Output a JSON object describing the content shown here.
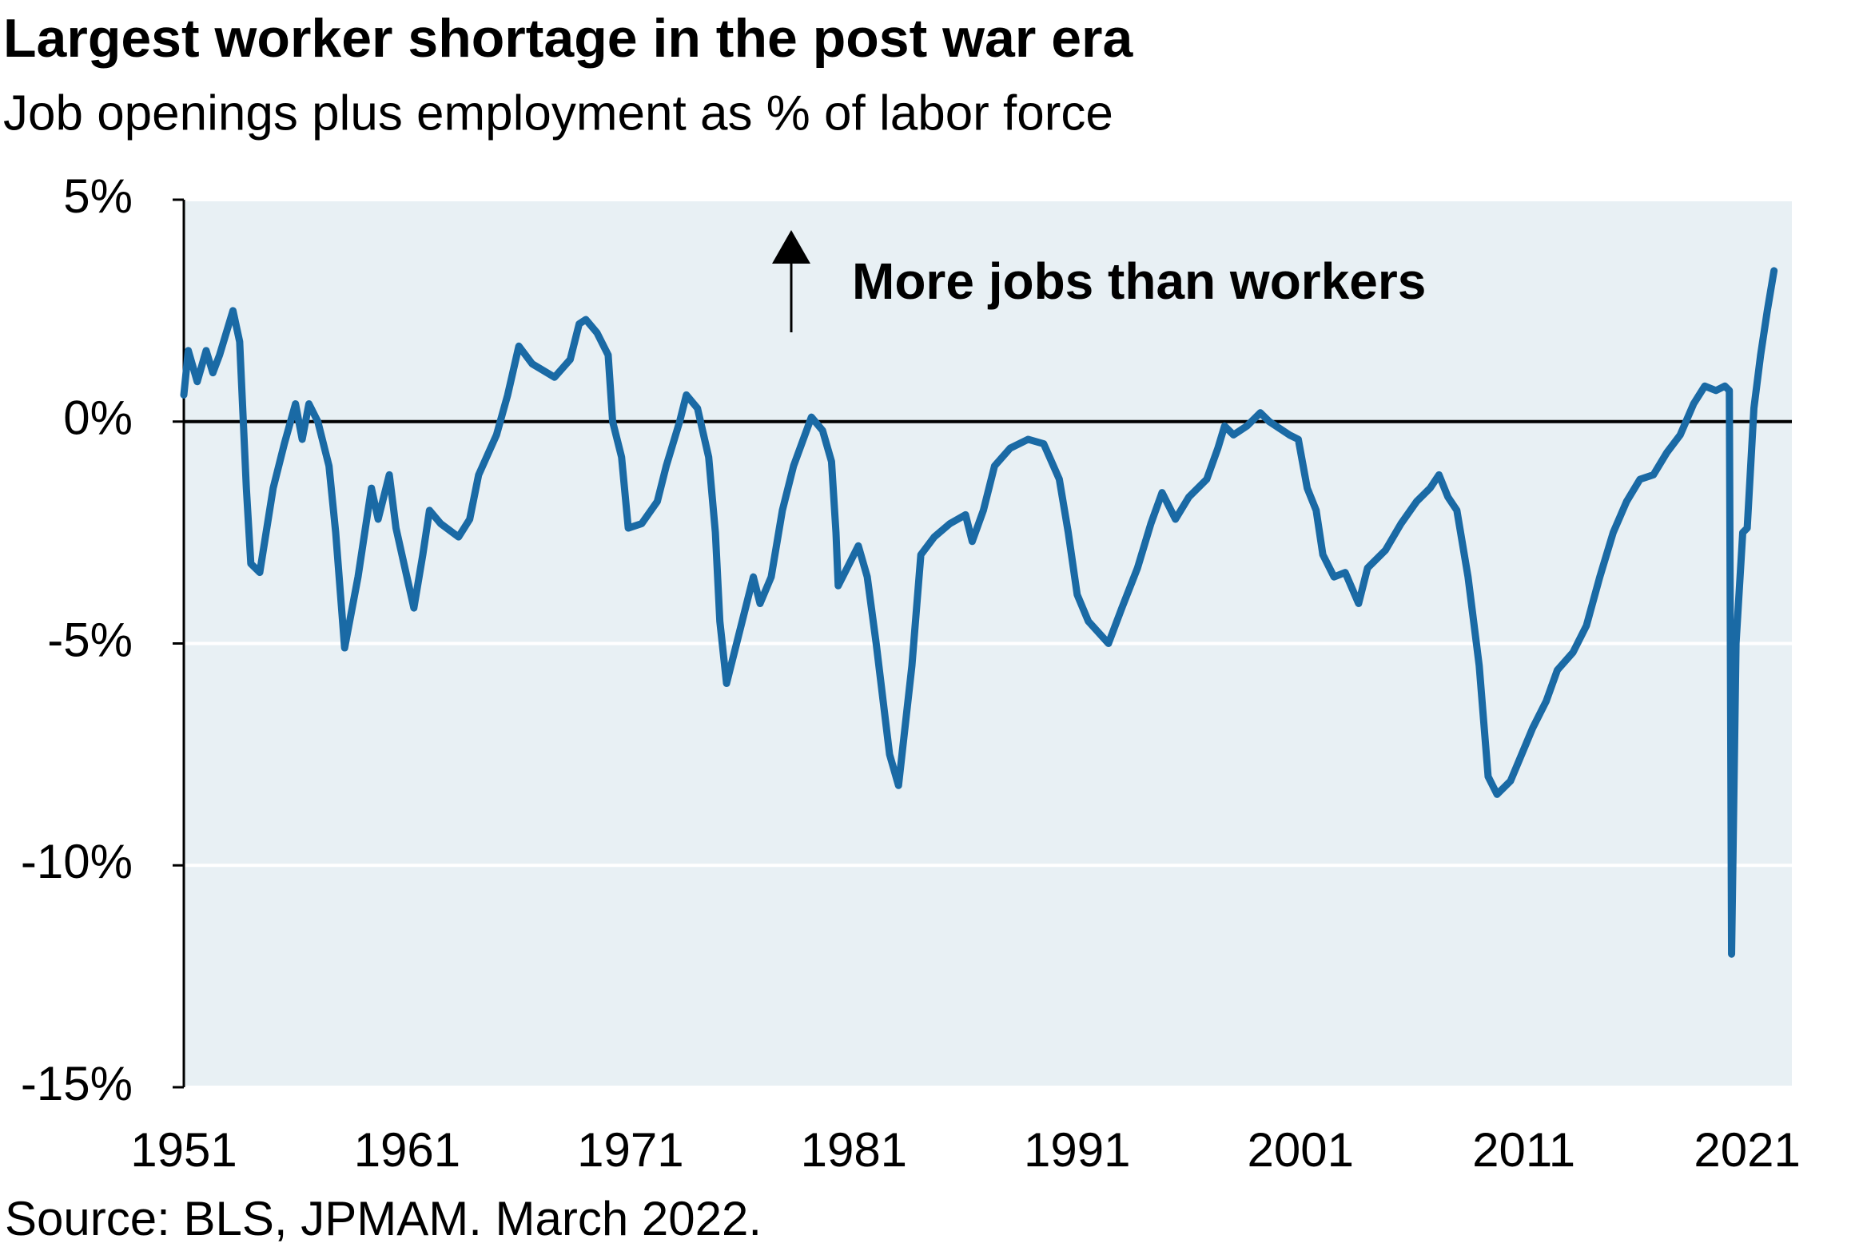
{
  "chart_data": {
    "type": "line",
    "title": "Largest worker shortage in the post war era",
    "subtitle": "Job openings plus employment as % of labor force",
    "annotation": "More jobs than workers",
    "source": "Source: BLS, JPMAM. March 2022.",
    "color": "#1a6aa5",
    "grid": true,
    "xlim": [
      1951,
      2023
    ],
    "xticks": [
      1951,
      1961,
      1971,
      1981,
      1991,
      2001,
      2011,
      2021
    ],
    "ylim": [
      -15,
      5
    ],
    "yticks": [
      {
        "value": 5,
        "label": "5%"
      },
      {
        "value": 0,
        "label": "0%"
      },
      {
        "value": -5,
        "label": "-5%"
      },
      {
        "value": -10,
        "label": "-10%"
      },
      {
        "value": -15,
        "label": "-15%"
      }
    ],
    "x": [
      1951.0,
      1951.2,
      1951.6,
      1952.0,
      1952.3,
      1952.6,
      1953.2,
      1953.5,
      1953.8,
      1954.0,
      1954.4,
      1955.0,
      1955.5,
      1956.0,
      1956.3,
      1956.6,
      1957.0,
      1957.5,
      1957.8,
      1958.2,
      1958.8,
      1959.4,
      1959.7,
      1960.2,
      1960.5,
      1961.3,
      1961.7,
      1962.0,
      1962.5,
      1963.3,
      1963.8,
      1964.2,
      1965.0,
      1965.5,
      1966.0,
      1966.6,
      1967.6,
      1968.3,
      1968.7,
      1969.0,
      1969.5,
      1970.0,
      1970.2,
      1970.6,
      1970.9,
      1971.5,
      1972.2,
      1972.6,
      1973.2,
      1973.5,
      1974.0,
      1974.5,
      1974.8,
      1975.0,
      1975.3,
      1976.0,
      1976.5,
      1976.8,
      1977.3,
      1977.8,
      1978.3,
      1979.1,
      1979.6,
      1980.0,
      1980.2,
      1980.3,
      1980.8,
      1981.2,
      1981.6,
      1982.0,
      1982.6,
      1983.0,
      1983.6,
      1984.0,
      1984.6,
      1985.3,
      1986.0,
      1986.3,
      1986.8,
      1987.3,
      1988.0,
      1988.8,
      1989.5,
      1990.2,
      1990.6,
      1991.0,
      1991.5,
      1992.4,
      1993.0,
      1993.7,
      1994.3,
      1994.8,
      1995.4,
      1996.0,
      1996.8,
      1997.3,
      1997.6,
      1998.0,
      1998.6,
      1999.2,
      1999.6,
      2000.5,
      2000.9,
      2001.3,
      2001.7,
      2002.0,
      2002.5,
      2003.0,
      2003.6,
      2004.0,
      2004.8,
      2005.5,
      2006.2,
      2006.8,
      2007.2,
      2007.6,
      2008.0,
      2008.5,
      2009.0,
      2009.4,
      2009.8,
      2010.4,
      2010.9,
      2011.4,
      2012.0,
      2012.5,
      2013.2,
      2013.8,
      2014.4,
      2015.0,
      2015.6,
      2016.2,
      2016.8,
      2017.4,
      2018.0,
      2018.6,
      2019.1,
      2019.6,
      2020.0,
      2020.2,
      2020.3,
      2020.5,
      2020.8,
      2021.0,
      2021.3,
      2021.6,
      2021.9,
      2022.2
    ],
    "values": [
      0.6,
      1.6,
      0.9,
      1.6,
      1.1,
      1.5,
      2.5,
      1.8,
      -1.5,
      -3.2,
      -3.4,
      -1.5,
      -0.5,
      0.4,
      -0.4,
      0.4,
      0.0,
      -1.0,
      -2.5,
      -5.1,
      -3.5,
      -1.5,
      -2.2,
      -1.2,
      -2.4,
      -4.2,
      -3.0,
      -2.0,
      -2.3,
      -2.6,
      -2.2,
      -1.2,
      -0.3,
      0.6,
      1.7,
      1.3,
      1.0,
      1.4,
      2.2,
      2.3,
      2.0,
      1.5,
      0.0,
      -0.8,
      -2.4,
      -2.3,
      -1.8,
      -1.0,
      0.0,
      0.6,
      0.3,
      -0.8,
      -2.5,
      -4.5,
      -5.9,
      -4.5,
      -3.5,
      -4.1,
      -3.5,
      -2.0,
      -1.0,
      0.1,
      -0.2,
      -0.9,
      -2.5,
      -3.7,
      -3.2,
      -2.8,
      -3.5,
      -5.0,
      -7.5,
      -8.2,
      -5.5,
      -3.0,
      -2.6,
      -2.3,
      -2.1,
      -2.7,
      -2.0,
      -1.0,
      -0.6,
      -0.4,
      -0.5,
      -1.3,
      -2.5,
      -3.9,
      -4.5,
      -5.0,
      -4.2,
      -3.3,
      -2.3,
      -1.6,
      -2.2,
      -1.7,
      -1.3,
      -0.6,
      -0.1,
      -0.3,
      -0.1,
      0.2,
      0.0,
      -0.3,
      -0.4,
      -1.5,
      -2.0,
      -3.0,
      -3.5,
      -3.4,
      -4.1,
      -3.3,
      -2.9,
      -2.3,
      -1.8,
      -1.5,
      -1.2,
      -1.7,
      -2.0,
      -3.5,
      -5.5,
      -8.0,
      -8.4,
      -8.1,
      -7.5,
      -6.9,
      -6.3,
      -5.6,
      -5.2,
      -4.6,
      -3.5,
      -2.5,
      -1.8,
      -1.3,
      -1.2,
      -0.7,
      -0.3,
      0.4,
      0.8,
      0.7,
      0.8,
      0.7,
      -12.0,
      -5.0,
      -2.5,
      -2.4,
      0.3,
      1.5,
      2.5,
      3.4
    ]
  }
}
